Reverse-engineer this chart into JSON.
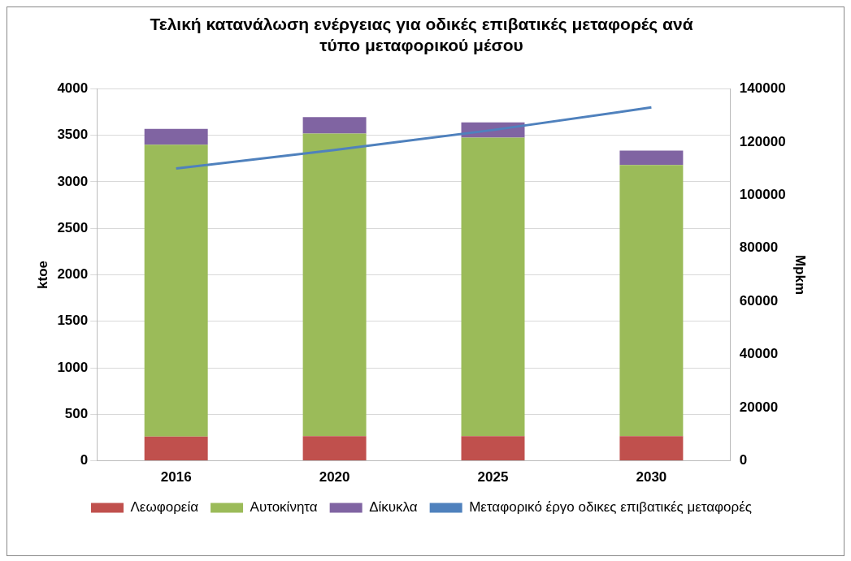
{
  "chart_data": {
    "type": "bar",
    "stacked": true,
    "title": [
      "Τελική κατανάλωση ενέργειας για οδικές επιβατικές μεταφορές ανά",
      "τύπο μεταφορικού μέσου"
    ],
    "ylabel": "ktoe",
    "y2label": "Mpkm",
    "categories": [
      "2016",
      "2020",
      "2025",
      "2030"
    ],
    "series": [
      {
        "name": "Λεωφορεία",
        "color": "#c0504d",
        "values": [
          260,
          265,
          265,
          265
        ]
      },
      {
        "name": "Αυτοκίνητα",
        "color": "#9bbb59",
        "values": [
          3140,
          3255,
          3210,
          2915
        ]
      },
      {
        "name": "Δίκυκλα",
        "color": "#8064a2",
        "values": [
          170,
          175,
          165,
          155
        ]
      },
      {
        "name": "Μεταφορικό έργο οδικες επιβατικές μεταφορές",
        "type": "line",
        "axis": "y2",
        "color": "#4f81bd",
        "values": [
          110000,
          117000,
          124500,
          133000
        ]
      }
    ],
    "ylim": [
      0,
      4000
    ],
    "yticks": [
      0,
      500,
      1000,
      1500,
      2000,
      2500,
      3000,
      3500,
      4000
    ],
    "y2lim": [
      0,
      140000
    ],
    "y2ticks": [
      0,
      20000,
      40000,
      60000,
      80000,
      100000,
      120000,
      140000
    ],
    "grid": "y",
    "legend": "bottom",
    "marker": "none"
  }
}
